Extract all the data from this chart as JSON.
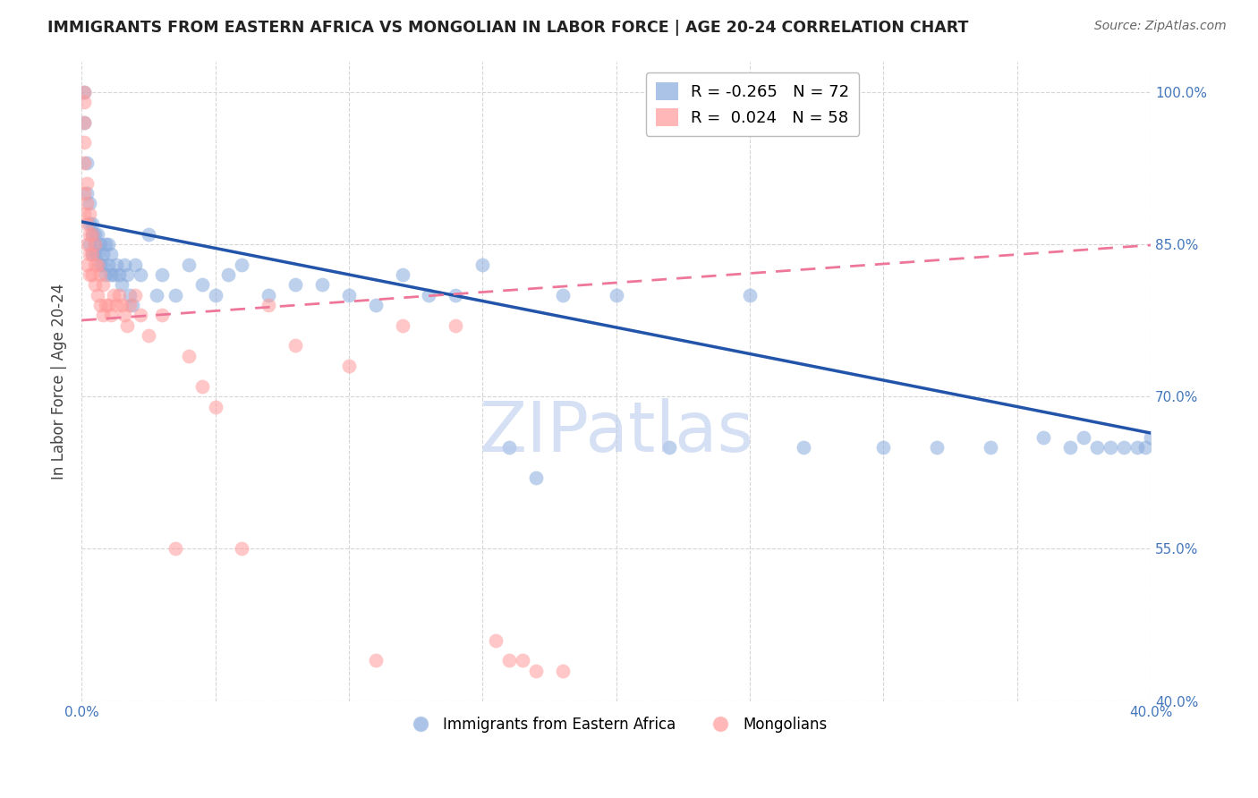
{
  "title": "IMMIGRANTS FROM EASTERN AFRICA VS MONGOLIAN IN LABOR FORCE | AGE 20-24 CORRELATION CHART",
  "source": "Source: ZipAtlas.com",
  "ylabel": "In Labor Force | Age 20-24",
  "x_min": 0.0,
  "x_max": 0.4,
  "y_min": 0.4,
  "y_max": 1.03,
  "x_ticks": [
    0.0,
    0.05,
    0.1,
    0.15,
    0.2,
    0.25,
    0.3,
    0.35,
    0.4
  ],
  "x_tick_labels": [
    "0.0%",
    "",
    "",
    "",
    "",
    "",
    "",
    "",
    "40.0%"
  ],
  "y_ticks": [
    0.4,
    0.55,
    0.7,
    0.85,
    1.0
  ],
  "y_tick_labels": [
    "40.0%",
    "55.0%",
    "70.0%",
    "85.0%",
    "100.0%"
  ],
  "blue_color": "#88AADD",
  "pink_color": "#FF9999",
  "blue_line_color": "#2255AA",
  "pink_line_color": "#EE7799",
  "grid_color": "#CCCCCC",
  "watermark_text": "ZIPatlas",
  "watermark_color": "#BBCCEE",
  "legend_label1": "Immigrants from Eastern Africa",
  "legend_label2": "Mongolians",
  "blue_legend_label": "R = -0.265   N = 72",
  "pink_legend_label": "R =  0.024   N = 58",
  "blue_intercept": 0.872,
  "blue_slope": -0.52,
  "pink_intercept": 0.775,
  "pink_slope": 0.185,
  "blue_scatter_x": [
    0.001,
    0.001,
    0.002,
    0.002,
    0.003,
    0.003,
    0.003,
    0.004,
    0.004,
    0.004,
    0.005,
    0.005,
    0.005,
    0.006,
    0.006,
    0.007,
    0.007,
    0.008,
    0.008,
    0.009,
    0.009,
    0.01,
    0.01,
    0.011,
    0.011,
    0.012,
    0.013,
    0.014,
    0.015,
    0.016,
    0.017,
    0.018,
    0.019,
    0.02,
    0.022,
    0.025,
    0.028,
    0.03,
    0.035,
    0.04,
    0.045,
    0.05,
    0.055,
    0.06,
    0.07,
    0.08,
    0.09,
    0.1,
    0.11,
    0.12,
    0.13,
    0.14,
    0.15,
    0.16,
    0.17,
    0.18,
    0.2,
    0.22,
    0.25,
    0.27,
    0.3,
    0.32,
    0.34,
    0.36,
    0.37,
    0.375,
    0.38,
    0.385,
    0.39,
    0.395,
    0.398,
    0.4
  ],
  "blue_scatter_y": [
    1.0,
    0.97,
    0.93,
    0.9,
    0.89,
    0.87,
    0.85,
    0.87,
    0.86,
    0.84,
    0.86,
    0.85,
    0.84,
    0.86,
    0.84,
    0.85,
    0.83,
    0.84,
    0.83,
    0.85,
    0.82,
    0.85,
    0.83,
    0.84,
    0.82,
    0.82,
    0.83,
    0.82,
    0.81,
    0.83,
    0.82,
    0.8,
    0.79,
    0.83,
    0.82,
    0.86,
    0.8,
    0.82,
    0.8,
    0.83,
    0.81,
    0.8,
    0.82,
    0.83,
    0.8,
    0.81,
    0.81,
    0.8,
    0.79,
    0.82,
    0.8,
    0.8,
    0.83,
    0.65,
    0.62,
    0.8,
    0.8,
    0.65,
    0.8,
    0.65,
    0.65,
    0.65,
    0.65,
    0.66,
    0.65,
    0.66,
    0.65,
    0.65,
    0.65,
    0.65,
    0.65,
    0.66
  ],
  "pink_scatter_x": [
    0.001,
    0.001,
    0.001,
    0.001,
    0.001,
    0.001,
    0.001,
    0.002,
    0.002,
    0.002,
    0.002,
    0.002,
    0.003,
    0.003,
    0.003,
    0.003,
    0.004,
    0.004,
    0.004,
    0.005,
    0.005,
    0.005,
    0.006,
    0.006,
    0.007,
    0.007,
    0.008,
    0.008,
    0.009,
    0.01,
    0.011,
    0.012,
    0.013,
    0.014,
    0.015,
    0.016,
    0.017,
    0.018,
    0.02,
    0.022,
    0.025,
    0.03,
    0.035,
    0.04,
    0.045,
    0.05,
    0.06,
    0.07,
    0.08,
    0.1,
    0.11,
    0.12,
    0.14,
    0.155,
    0.16,
    0.165,
    0.17,
    0.18
  ],
  "pink_scatter_y": [
    1.0,
    0.99,
    0.97,
    0.95,
    0.93,
    0.9,
    0.88,
    0.91,
    0.89,
    0.87,
    0.85,
    0.83,
    0.88,
    0.86,
    0.84,
    0.82,
    0.86,
    0.84,
    0.82,
    0.85,
    0.83,
    0.81,
    0.83,
    0.8,
    0.82,
    0.79,
    0.81,
    0.78,
    0.79,
    0.79,
    0.78,
    0.8,
    0.79,
    0.8,
    0.79,
    0.78,
    0.77,
    0.79,
    0.8,
    0.78,
    0.76,
    0.78,
    0.55,
    0.74,
    0.71,
    0.69,
    0.55,
    0.79,
    0.75,
    0.73,
    0.44,
    0.77,
    0.77,
    0.46,
    0.44,
    0.44,
    0.43,
    0.43
  ]
}
